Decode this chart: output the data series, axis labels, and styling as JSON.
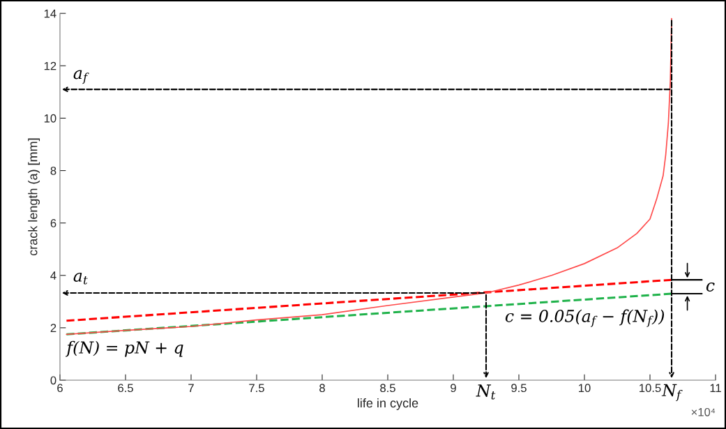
{
  "chart_data": {
    "type": "line",
    "xlabel": "life in cycle",
    "ylabel": "crack length (a) [mm]",
    "series": [
      {
        "x": [
          6.05,
          6.5,
          7,
          7.5,
          8,
          8.5,
          9,
          9.25,
          9.5,
          9.75,
          10,
          10.25,
          10.4,
          10.5,
          10.55,
          10.6,
          10.62,
          10.64,
          10.655,
          10.665
        ],
        "values": [
          1.75,
          1.9,
          2.05,
          2.3,
          2.5,
          2.85,
          3.17,
          3.33,
          3.63,
          4.0,
          4.45,
          5.05,
          5.6,
          6.15,
          6.9,
          7.8,
          8.6,
          9.8,
          11.4,
          13.8
        ],
        "color": "#ff4a4a",
        "line_style": "solid"
      },
      {
        "x": [
          6.05,
          10.665
        ],
        "values": [
          2.27,
          3.83
        ],
        "color": "#ff0000",
        "line_style": "dashed"
      },
      {
        "x": [
          6.05,
          10.665
        ],
        "values": [
          1.75,
          3.3
        ],
        "color": "#1fb24a",
        "line_style": "dashed"
      }
    ],
    "xlim": [
      6,
      11
    ],
    "xticks": [
      6,
      6.5,
      7,
      7.5,
      8,
      8.5,
      9,
      9.5,
      10,
      10.5,
      11
    ],
    "ylim": [
      0,
      14
    ],
    "yticks": [
      0,
      2,
      4,
      6,
      8,
      10,
      12,
      14
    ],
    "annotations": [
      {
        "text": "a$_{f}$",
        "x": 10.665,
        "y": 11.1
      },
      {
        "text": "a$_{t}$",
        "x": 9.25,
        "y": 3.33
      },
      {
        "text": "N$_{t}$",
        "x": 9.25,
        "y": 3.33
      },
      {
        "text": "N$_{f}$",
        "x": 10.665,
        "y": 13.8
      },
      {
        "text": "c",
        "x": 10.665,
        "y": 3.83
      },
      {
        "text": "f(N) = pN + q",
        "x": 6.05,
        "y": 1.75
      },
      {
        "text": "c = 0.05(a$_{f}$ − f(N$_{f}$))",
        "x": 10.665,
        "y": 3.3
      },
      "×10⁴"
    ],
    "grid": false,
    "marker": "none"
  }
}
